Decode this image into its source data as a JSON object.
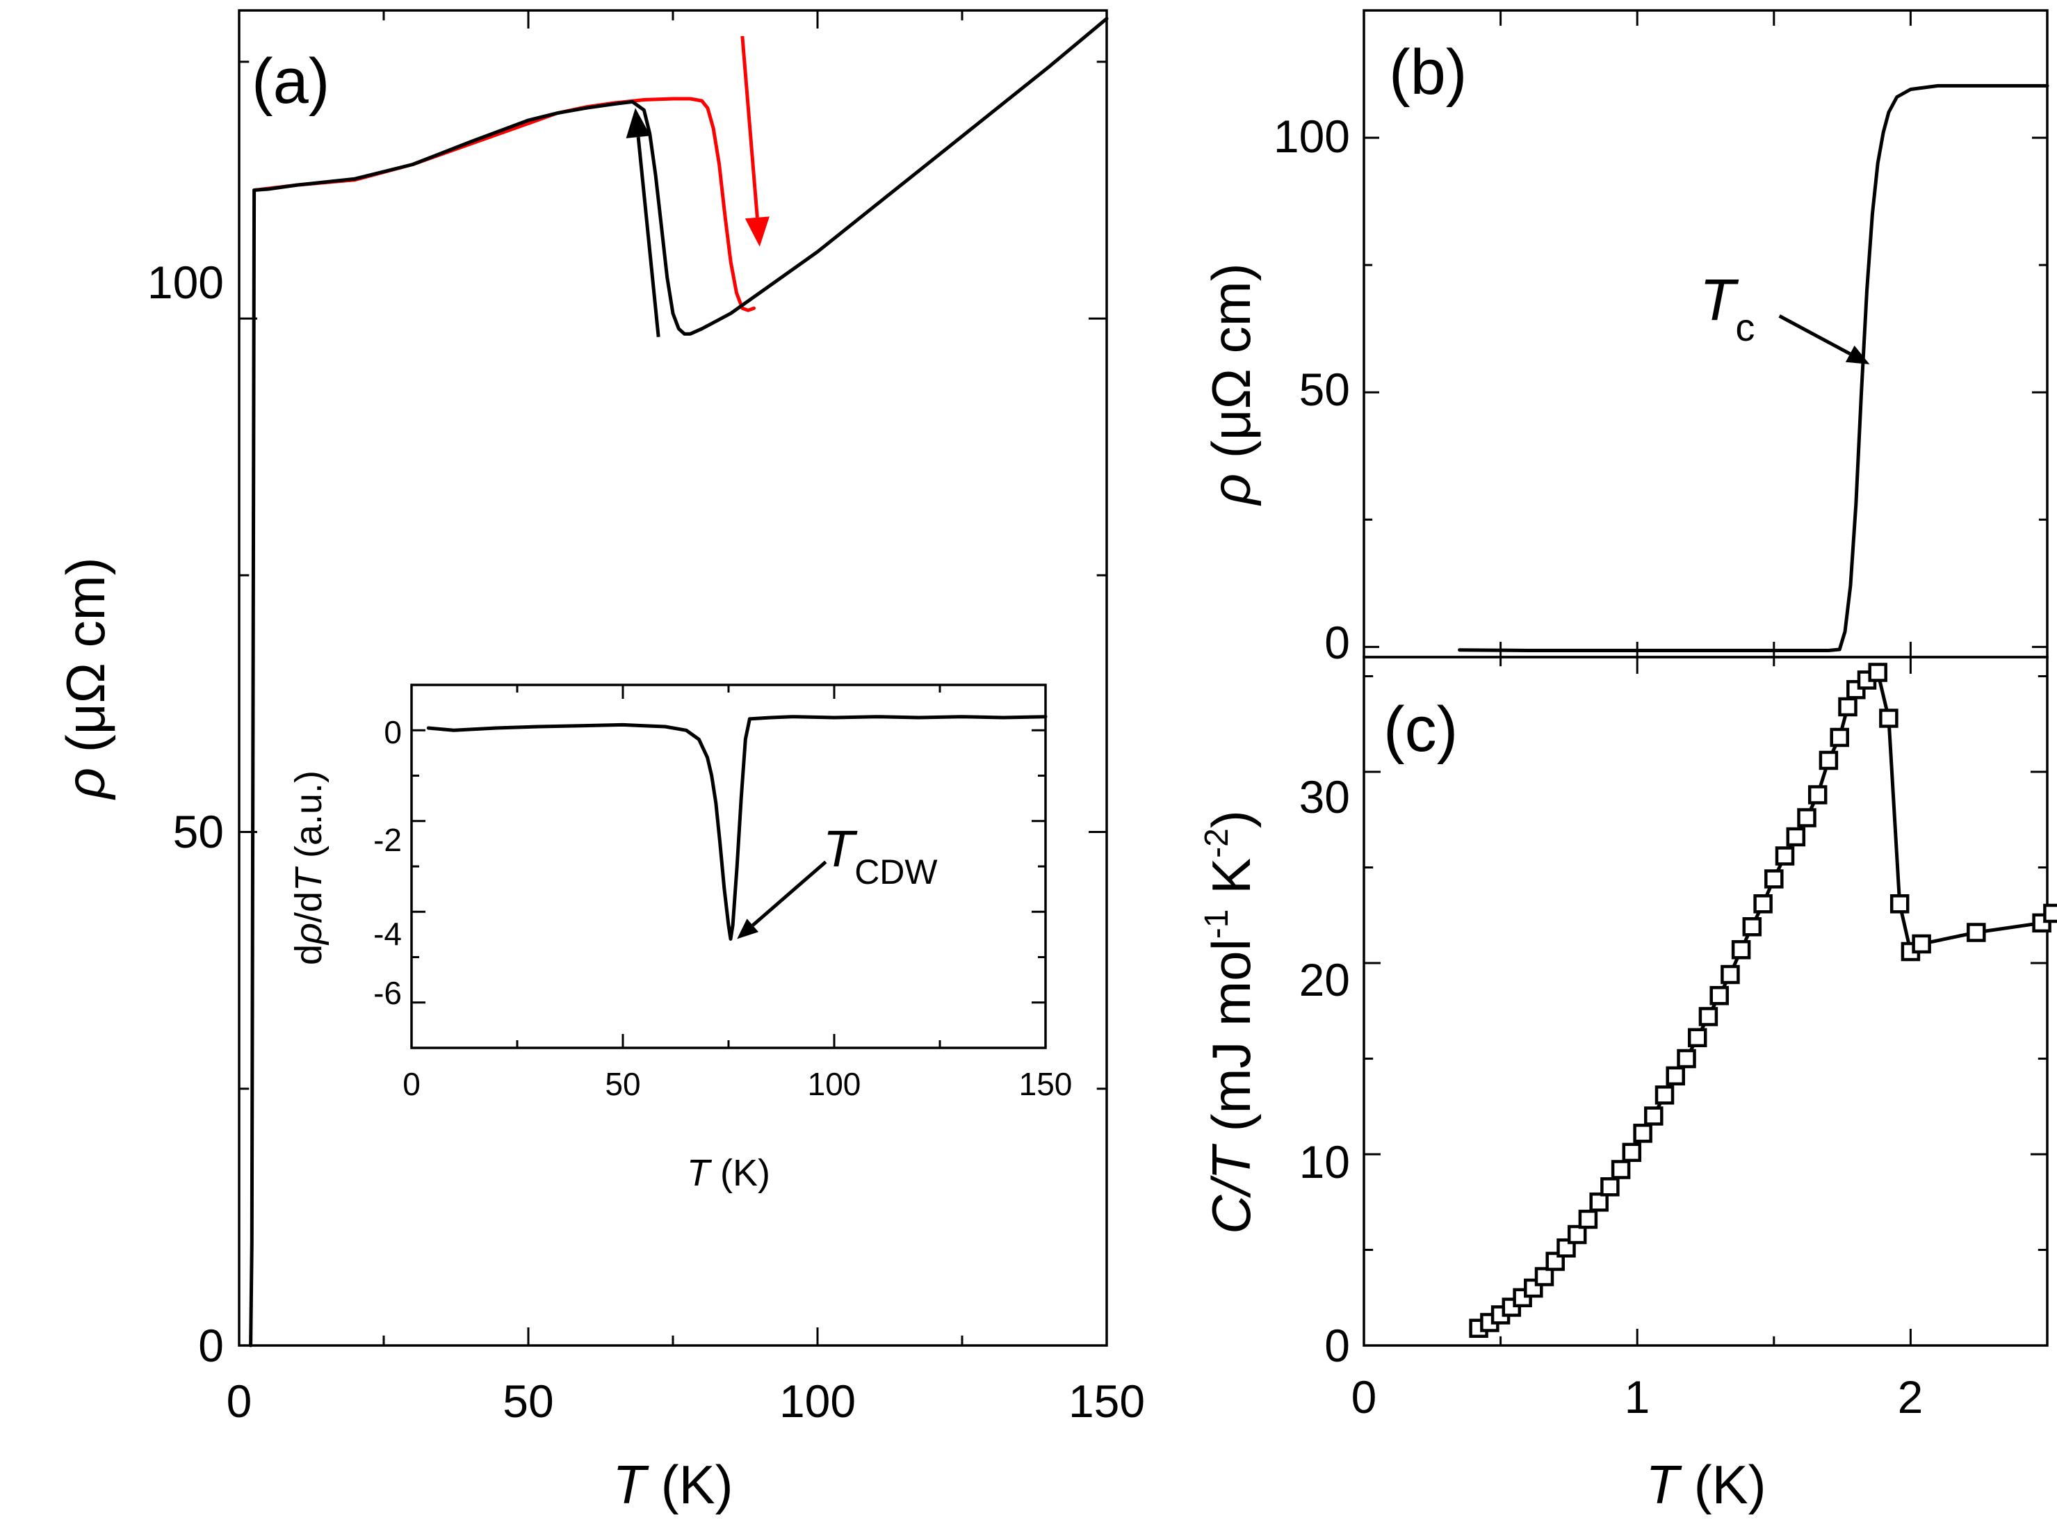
{
  "colors": {
    "cooling": "#000000",
    "warming": "#ff0000",
    "axis": "#000000"
  },
  "chart_data": [
    {
      "panel": "a",
      "type": "line",
      "panel_label": "(a)",
      "xlabel_italic": "T",
      "xlabel_unit": " (K)",
      "ylabel_italic": "ρ",
      "ylabel_unit": " (μΩ cm)",
      "xlim": [
        0,
        150
      ],
      "ylim": [
        0,
        130
      ],
      "x_ticks": [
        0,
        50,
        100,
        150
      ],
      "x_tick_labels": [
        "0",
        "50",
        "100",
        "150"
      ],
      "y_ticks": [
        0,
        50,
        100
      ],
      "y_tick_labels": [
        "0",
        "50",
        "100"
      ],
      "series": [
        {
          "name": "warming",
          "color": "#ff0000",
          "x": [
            2.6,
            10,
            20,
            30,
            40,
            50,
            55,
            60,
            65,
            70,
            75,
            78,
            80,
            81,
            82,
            83,
            84,
            85,
            86,
            87,
            88,
            89
          ],
          "y": [
            112.5,
            113.0,
            113.5,
            115.0,
            117.0,
            119.0,
            120.0,
            120.6,
            121.0,
            121.3,
            121.4,
            121.4,
            121.2,
            120.5,
            118.5,
            115.0,
            110.0,
            105.5,
            102.5,
            101.0,
            100.8,
            101.0
          ]
        },
        {
          "name": "cooling",
          "color": "#000000",
          "x": [
            2.0,
            2.2,
            2.6,
            5,
            10,
            20,
            30,
            40,
            50,
            55,
            60,
            65,
            68,
            70,
            71,
            72,
            73,
            74,
            75,
            76,
            77,
            78,
            80,
            85,
            90,
            100,
            110,
            120,
            130,
            140,
            150
          ],
          "y": [
            0,
            10,
            112.5,
            112.6,
            113.0,
            113.6,
            115.0,
            117.2,
            119.3,
            120.0,
            120.5,
            120.9,
            121.1,
            120.3,
            118.0,
            114.0,
            109.0,
            104.0,
            100.5,
            99.0,
            98.5,
            98.5,
            99.0,
            100.5,
            102.5,
            106.5,
            111.0,
            115.5,
            120.0,
            124.5,
            129.2
          ]
        }
      ],
      "arrows": [
        {
          "name": "cooling-arrow",
          "color": "#000000",
          "from": [
            72.5,
            98.2
          ],
          "to": [
            68.5,
            120.5
          ]
        },
        {
          "name": "warming-arrow",
          "color": "#ff0000",
          "from": [
            87.0,
            127.5
          ],
          "to": [
            90.0,
            107.0
          ]
        }
      ],
      "inset": {
        "type": "line",
        "xlabel_italic": "T",
        "xlabel_unit": " (K)",
        "ylabel_prefix": "d",
        "ylabel_rho": "ρ",
        "ylabel_mid": "/d",
        "ylabel_italic_T": "T",
        "ylabel_unit": " (a.u.)",
        "xlim": [
          0,
          150
        ],
        "ylim": [
          -7,
          1
        ],
        "x_ticks": [
          0,
          50,
          100,
          150
        ],
        "x_tick_labels": [
          "0",
          "50",
          "100",
          "150"
        ],
        "y_ticks": [
          0,
          -2,
          -4,
          -6
        ],
        "y_tick_labels": [
          "0",
          "-2",
          "-4",
          "-6"
        ],
        "series": [
          {
            "name": "drho-dT",
            "color": "#000000",
            "x": [
              4,
              10,
              20,
              30,
              40,
              50,
              55,
              60,
              65,
              68,
              70,
              71,
              72,
              73,
              74,
              75,
              75.5,
              76,
              77,
              78,
              79,
              80,
              85,
              90,
              100,
              110,
              120,
              130,
              140,
              150
            ],
            "y": [
              0.05,
              0.0,
              0.05,
              0.08,
              0.1,
              0.12,
              0.1,
              0.08,
              0.0,
              -0.2,
              -0.6,
              -1.0,
              -1.6,
              -2.5,
              -3.5,
              -4.3,
              -4.6,
              -4.3,
              -3.0,
              -1.5,
              -0.2,
              0.25,
              0.28,
              0.3,
              0.28,
              0.3,
              0.28,
              0.3,
              0.28,
              0.3
            ]
          }
        ],
        "annotation_italic": "T",
        "annotation_sub": "CDW",
        "annotation_arrow": {
          "from": [
            98,
            -2.9
          ],
          "to": [
            77,
            -4.6
          ]
        }
      }
    },
    {
      "panel": "b",
      "type": "line",
      "panel_label": "(b)",
      "ylabel_italic": "ρ",
      "ylabel_unit": " (μΩ cm)",
      "xlim": [
        0,
        2.5
      ],
      "ylim": [
        -2,
        125
      ],
      "y_ticks": [
        0,
        50,
        100
      ],
      "y_tick_labels": [
        "0",
        "50",
        "100"
      ],
      "series": [
        {
          "name": "rho-low-T",
          "color": "#000000",
          "x": [
            0.35,
            0.6,
            0.8,
            1.0,
            1.2,
            1.4,
            1.6,
            1.7,
            1.74,
            1.76,
            1.78,
            1.8,
            1.82,
            1.84,
            1.86,
            1.88,
            1.9,
            1.92,
            1.95,
            2.0,
            2.1,
            2.5
          ],
          "y": [
            -0.6,
            -0.7,
            -0.7,
            -0.7,
            -0.7,
            -0.7,
            -0.7,
            -0.7,
            -0.5,
            3,
            12,
            28,
            50,
            70,
            85,
            95,
            101,
            105,
            108,
            109.5,
            110.2,
            110.2
          ]
        }
      ],
      "annotation_italic": "T",
      "annotation_sub": "c",
      "annotation_arrow": {
        "from": [
          1.52,
          65.0
        ],
        "to": [
          1.85,
          55.5
        ]
      }
    },
    {
      "panel": "c",
      "type": "scatter",
      "panel_label": "(c)",
      "xlabel_italic": "T",
      "xlabel_unit": " (K)",
      "ylabel_italic": "C/T",
      "ylabel_unit_pre": " (mJ mol",
      "ylabel_sup1": "-1",
      "ylabel_unit_mid": " K",
      "ylabel_sup2": "-2",
      "ylabel_unit_post": ")",
      "xlim": [
        0,
        2.5
      ],
      "ylim": [
        0,
        36
      ],
      "x_ticks": [
        0,
        1,
        2
      ],
      "x_tick_labels": [
        "0",
        "1",
        "2"
      ],
      "y_ticks": [
        0,
        10,
        20,
        30
      ],
      "y_tick_labels": [
        "0",
        "10",
        "20",
        "30"
      ],
      "series": [
        {
          "name": "C-over-T",
          "color": "#000000",
          "x": [
            0.42,
            0.46,
            0.5,
            0.54,
            0.58,
            0.62,
            0.66,
            0.7,
            0.74,
            0.78,
            0.82,
            0.86,
            0.9,
            0.94,
            0.98,
            1.02,
            1.06,
            1.1,
            1.14,
            1.18,
            1.22,
            1.26,
            1.3,
            1.34,
            1.38,
            1.42,
            1.46,
            1.5,
            1.54,
            1.58,
            1.62,
            1.66,
            1.7,
            1.74,
            1.77,
            1.8,
            1.84,
            1.88,
            1.92,
            1.96,
            2.0,
            2.04,
            2.24,
            2.48,
            2.52
          ],
          "y": [
            0.9,
            1.2,
            1.6,
            2.0,
            2.5,
            3.0,
            3.6,
            4.4,
            5.1,
            5.8,
            6.6,
            7.5,
            8.3,
            9.2,
            10.1,
            11.1,
            12.0,
            13.1,
            14.1,
            15.0,
            16.1,
            17.2,
            18.3,
            19.4,
            20.7,
            21.9,
            23.1,
            24.4,
            25.6,
            26.6,
            27.6,
            28.8,
            30.6,
            31.8,
            33.4,
            34.3,
            34.8,
            35.2,
            32.8,
            23.1,
            20.6,
            21.0,
            21.6,
            22.1,
            22.6
          ]
        }
      ]
    }
  ]
}
